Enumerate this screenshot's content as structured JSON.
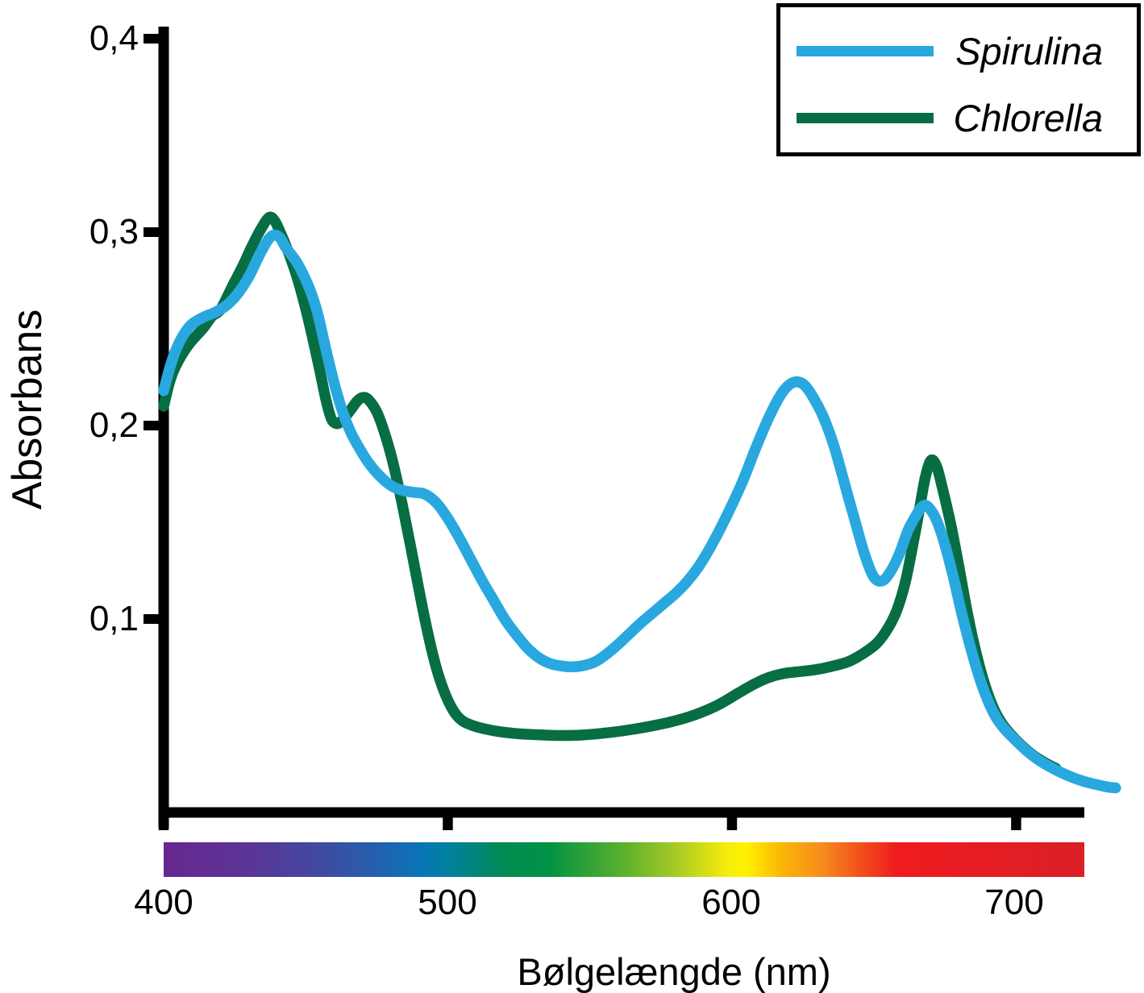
{
  "chart_data": {
    "type": "line",
    "title": "",
    "xlabel": "Bølgelængde (nm)",
    "ylabel": "Absorbans",
    "xlim": [
      400,
      724
    ],
    "ylim": [
      0,
      0.4
    ],
    "grid": false,
    "legend_position": "top-right",
    "xticks": [
      {
        "value": 400,
        "label": "400"
      },
      {
        "value": 500,
        "label": "500"
      },
      {
        "value": 600,
        "label": "600"
      },
      {
        "value": 700,
        "label": "700"
      }
    ],
    "yticks": [
      {
        "value": 0.1,
        "label": "0,1"
      },
      {
        "value": 0.2,
        "label": "0,2"
      },
      {
        "value": 0.3,
        "label": "0,3"
      },
      {
        "value": 0.4,
        "label": "0,4"
      }
    ],
    "series": [
      {
        "name": "Spirulina",
        "color": "#29A8DF",
        "points": [
          [
            400,
            0.218
          ],
          [
            402,
            0.229
          ],
          [
            404,
            0.238
          ],
          [
            407,
            0.247
          ],
          [
            410,
            0.2525
          ],
          [
            414,
            0.256
          ],
          [
            418,
            0.2585
          ],
          [
            422,
            0.262
          ],
          [
            426,
            0.268
          ],
          [
            430,
            0.277
          ],
          [
            434,
            0.289
          ],
          [
            437,
            0.2965
          ],
          [
            439,
            0.2985
          ],
          [
            441,
            0.297
          ],
          [
            443,
            0.292
          ],
          [
            447,
            0.284
          ],
          [
            451,
            0.272
          ],
          [
            454,
            0.259
          ],
          [
            457,
            0.24
          ],
          [
            460,
            0.222
          ],
          [
            463,
            0.207
          ],
          [
            466,
            0.196
          ],
          [
            469,
            0.188
          ],
          [
            472,
            0.181
          ],
          [
            476,
            0.174
          ],
          [
            480,
            0.169
          ],
          [
            484,
            0.1665
          ],
          [
            488,
            0.1655
          ],
          [
            492,
            0.1645
          ],
          [
            496,
            0.16
          ],
          [
            500,
            0.152
          ],
          [
            504,
            0.142
          ],
          [
            508,
            0.131
          ],
          [
            512,
            0.12
          ],
          [
            516,
            0.11
          ],
          [
            520,
            0.1
          ],
          [
            524,
            0.092
          ],
          [
            528,
            0.085
          ],
          [
            532,
            0.08
          ],
          [
            536,
            0.077
          ],
          [
            540,
            0.0757
          ],
          [
            544,
            0.0753
          ],
          [
            548,
            0.076
          ],
          [
            552,
            0.078
          ],
          [
            556,
            0.082
          ],
          [
            560,
            0.087
          ],
          [
            564,
            0.0925
          ],
          [
            568,
            0.098
          ],
          [
            572,
            0.103
          ],
          [
            576,
            0.108
          ],
          [
            580,
            0.113
          ],
          [
            584,
            0.119
          ],
          [
            588,
            0.1265
          ],
          [
            592,
            0.136
          ],
          [
            596,
            0.147
          ],
          [
            600,
            0.159
          ],
          [
            604,
            0.172
          ],
          [
            608,
            0.187
          ],
          [
            612,
            0.201
          ],
          [
            616,
            0.213
          ],
          [
            619,
            0.2195
          ],
          [
            622,
            0.2225
          ],
          [
            625,
            0.2215
          ],
          [
            628,
            0.216
          ],
          [
            632,
            0.205
          ],
          [
            636,
            0.189
          ],
          [
            640,
            0.168
          ],
          [
            644,
            0.147
          ],
          [
            647,
            0.132
          ],
          [
            650,
            0.1215
          ],
          [
            653,
            0.1198
          ],
          [
            656,
            0.125
          ],
          [
            659,
            0.134
          ],
          [
            662,
            0.146
          ],
          [
            665,
            0.154
          ],
          [
            667,
            0.1583
          ],
          [
            669,
            0.158
          ],
          [
            672,
            0.151
          ],
          [
            675,
            0.138
          ],
          [
            678,
            0.121
          ],
          [
            681,
            0.102
          ],
          [
            684,
            0.085
          ],
          [
            687,
            0.07
          ],
          [
            690,
            0.058
          ],
          [
            693,
            0.049
          ],
          [
            696,
            0.043
          ],
          [
            700,
            0.037
          ],
          [
            704,
            0.0315
          ],
          [
            708,
            0.027
          ],
          [
            712,
            0.0235
          ],
          [
            716,
            0.0205
          ],
          [
            720,
            0.018
          ],
          [
            724,
            0.016
          ],
          [
            728,
            0.0145
          ],
          [
            732,
            0.0132
          ],
          [
            735,
            0.0127
          ]
        ]
      },
      {
        "name": "Chlorella",
        "color": "#076E44",
        "points": [
          [
            400,
            0.21
          ],
          [
            402,
            0.222
          ],
          [
            404,
            0.23
          ],
          [
            407,
            0.238
          ],
          [
            410,
            0.244
          ],
          [
            414,
            0.2505
          ],
          [
            417,
            0.2565
          ],
          [
            420,
            0.26
          ],
          [
            424,
            0.2715
          ],
          [
            428,
            0.283
          ],
          [
            431,
            0.2925
          ],
          [
            434,
            0.301
          ],
          [
            437,
            0.3075
          ],
          [
            439,
            0.306
          ],
          [
            441,
            0.3
          ],
          [
            443,
            0.293
          ],
          [
            446,
            0.281
          ],
          [
            449,
            0.266
          ],
          [
            452,
            0.248
          ],
          [
            455,
            0.228
          ],
          [
            457,
            0.214
          ],
          [
            459,
            0.2035
          ],
          [
            461,
            0.201
          ],
          [
            463,
            0.203
          ],
          [
            466,
            0.2085
          ],
          [
            468,
            0.2125
          ],
          [
            470,
            0.2145
          ],
          [
            472,
            0.2135
          ],
          [
            475,
            0.207
          ],
          [
            478,
            0.195
          ],
          [
            481,
            0.179
          ],
          [
            484,
            0.159
          ],
          [
            487,
            0.137
          ],
          [
            490,
            0.114
          ],
          [
            493,
            0.0925
          ],
          [
            496,
            0.0745
          ],
          [
            499,
            0.0615
          ],
          [
            502,
            0.0525
          ],
          [
            505,
            0.0475
          ],
          [
            509,
            0.0448
          ],
          [
            513,
            0.0432
          ],
          [
            518,
            0.0418
          ],
          [
            524,
            0.0408
          ],
          [
            531,
            0.0402
          ],
          [
            539,
            0.0398
          ],
          [
            547,
            0.04
          ],
          [
            555,
            0.041
          ],
          [
            563,
            0.0425
          ],
          [
            571,
            0.0445
          ],
          [
            579,
            0.047
          ],
          [
            587,
            0.0505
          ],
          [
            595,
            0.0555
          ],
          [
            602,
            0.0615
          ],
          [
            608,
            0.0665
          ],
          [
            613,
            0.0698
          ],
          [
            618,
            0.0718
          ],
          [
            623,
            0.0727
          ],
          [
            629,
            0.0737
          ],
          [
            635,
            0.0755
          ],
          [
            641,
            0.078
          ],
          [
            646,
            0.082
          ],
          [
            651,
            0.0875
          ],
          [
            655,
            0.0955
          ],
          [
            658,
            0.1045
          ],
          [
            661,
            0.119
          ],
          [
            664,
            0.141
          ],
          [
            666,
            0.157
          ],
          [
            668,
            0.173
          ],
          [
            670,
            0.182
          ],
          [
            672,
            0.179
          ],
          [
            674,
            0.168
          ],
          [
            677,
            0.149
          ],
          [
            680,
            0.126
          ],
          [
            683,
            0.102
          ],
          [
            686,
            0.082
          ],
          [
            689,
            0.066
          ],
          [
            692,
            0.054
          ],
          [
            695,
            0.046
          ],
          [
            698,
            0.0405
          ],
          [
            702,
            0.0345
          ],
          [
            706,
            0.0295
          ],
          [
            710,
            0.0258
          ],
          [
            714,
            0.0228
          ]
        ]
      }
    ],
    "spectrum_bar": {
      "description": "visible-light spectrum strip under x-axis, 400-724 nm",
      "stops": [
        {
          "nm": 400,
          "color": "#67278F"
        },
        {
          "nm": 430,
          "color": "#5B3597"
        },
        {
          "nm": 455,
          "color": "#414AA0"
        },
        {
          "nm": 475,
          "color": "#2460AE"
        },
        {
          "nm": 490,
          "color": "#0A74B8"
        },
        {
          "nm": 500,
          "color": "#00809F"
        },
        {
          "nm": 510,
          "color": "#008579"
        },
        {
          "nm": 520,
          "color": "#008C52"
        },
        {
          "nm": 535,
          "color": "#009245"
        },
        {
          "nm": 560,
          "color": "#55AE2E"
        },
        {
          "nm": 580,
          "color": "#A6C926"
        },
        {
          "nm": 598,
          "color": "#F6EC0D"
        },
        {
          "nm": 605,
          "color": "#FFF200"
        },
        {
          "nm": 618,
          "color": "#FBB307"
        },
        {
          "nm": 632,
          "color": "#F68B1F"
        },
        {
          "nm": 645,
          "color": "#F2501B"
        },
        {
          "nm": 658,
          "color": "#EE1C1E"
        },
        {
          "nm": 680,
          "color": "#E81C22"
        },
        {
          "nm": 724,
          "color": "#D92026"
        }
      ]
    },
    "axis_color": "#000000"
  }
}
